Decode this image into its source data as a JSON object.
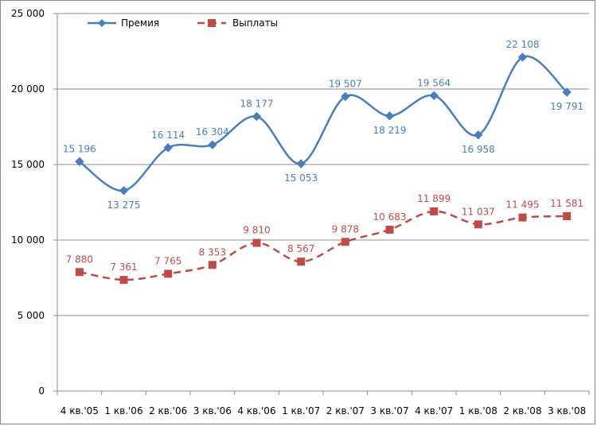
{
  "chart_data": {
    "type": "line",
    "title": "",
    "xlabel": "",
    "ylabel": "",
    "categories": [
      "4 кв.'05",
      "1 кв.'06",
      "2 кв.'06",
      "3 кв.'06",
      "4 кв.'06",
      "1 кв.'07",
      "2 кв.'07",
      "3 кв.'07",
      "4 кв.'07",
      "1 кв.'08",
      "2 кв.'08",
      "3 кв.'08"
    ],
    "ylim": [
      0,
      25000
    ],
    "yticks": [
      0,
      5000,
      10000,
      15000,
      20000,
      25000
    ],
    "ytick_labels": [
      "0",
      "5 000",
      "10 000",
      "15 000",
      "20 000",
      "25 000"
    ],
    "grid": true,
    "legend_position": "top-left",
    "series": [
      {
        "name": "Премия",
        "color": "#4a7ebb",
        "marker": "diamond",
        "line_style": "solid-smooth",
        "values": [
          15196,
          13275,
          16114,
          16304,
          18177,
          15053,
          19507,
          18219,
          19564,
          16958,
          22108,
          19791
        ],
        "labels": [
          "15 196",
          "13 275",
          "16 114",
          "16 304",
          "18 177",
          "15 053",
          "19 507",
          "18 219",
          "19 564",
          "16 958",
          "22 108",
          "19 791"
        ],
        "label_side": [
          "above",
          "below",
          "above",
          "above",
          "above",
          "below",
          "above",
          "below",
          "above",
          "below",
          "above",
          "below"
        ]
      },
      {
        "name": "Выплаты",
        "color": "#be4b48",
        "marker": "square",
        "line_style": "dashed-smooth",
        "values": [
          7880,
          7361,
          7765,
          8353,
          9810,
          8567,
          9878,
          10683,
          11899,
          11037,
          11495,
          11581
        ],
        "labels": [
          "7 880",
          "7 361",
          "7 765",
          "8 353",
          "9 810",
          "8 567",
          "9 878",
          "10 683",
          "11 899",
          "11 037",
          "11 495",
          "11 581"
        ],
        "label_side": [
          "above",
          "above",
          "above",
          "above",
          "above",
          "above",
          "above",
          "above",
          "above",
          "above",
          "above",
          "above"
        ]
      }
    ]
  }
}
